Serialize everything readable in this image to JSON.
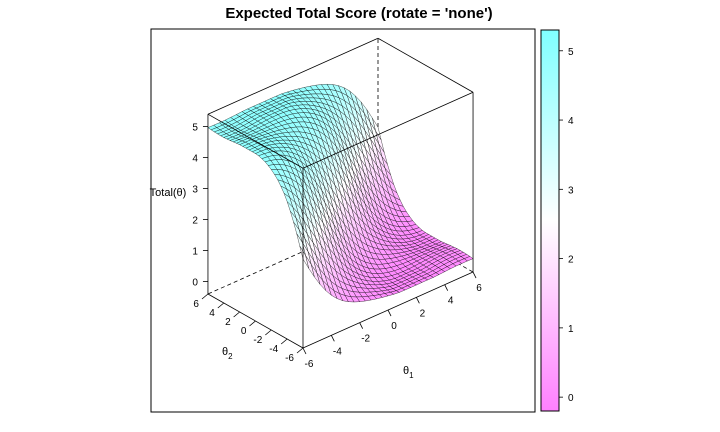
{
  "chart_data": {
    "type": "surface",
    "title": "Expected Total Score (rotate = 'none')",
    "x_label_main": "θ",
    "x_label_sub": "1",
    "y_label_main": "θ",
    "y_label_sub": "2",
    "z_label": "Total(θ)",
    "x_ticks": [
      "-6",
      "-4",
      "-2",
      "0",
      "2",
      "4",
      "6"
    ],
    "y_ticks": [
      "-6",
      "-4",
      "-2",
      "0",
      "2",
      "4",
      "6"
    ],
    "z_ticks": [
      "0",
      "1",
      "2",
      "3",
      "4",
      "5"
    ],
    "xlim": [
      -6,
      6
    ],
    "ylim": [
      -6,
      6
    ],
    "zlim": [
      0,
      5
    ],
    "colorkey": {
      "ticks": [
        "0",
        "1",
        "2",
        "3",
        "4",
        "5"
      ],
      "range": [
        -0.2,
        5.3
      ],
      "low_color": "#ff80ff",
      "mid_color": "#ffffff",
      "high_color": "#80ffff"
    },
    "surface": {
      "description_of_shape": "Monotone sigmoid-like decreasing surface: z ≈ 5 at theta1 = -6, theta2 = 6; z ≈ 0 at theta1 = 6, theta2 = -6",
      "grid_n": 30,
      "z_max": 5
    }
  }
}
